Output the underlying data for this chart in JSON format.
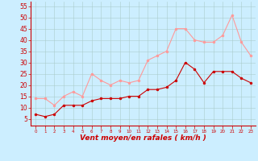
{
  "x": [
    0,
    1,
    2,
    3,
    4,
    5,
    6,
    7,
    8,
    9,
    10,
    11,
    12,
    13,
    14,
    15,
    16,
    17,
    18,
    19,
    20,
    21,
    22,
    23
  ],
  "wind_mean": [
    7,
    6,
    7,
    11,
    11,
    11,
    13,
    14,
    14,
    14,
    15,
    15,
    18,
    18,
    19,
    22,
    30,
    27,
    21,
    26,
    26,
    26,
    23,
    21
  ],
  "wind_gust": [
    14,
    14,
    11,
    15,
    17,
    15,
    25,
    22,
    20,
    22,
    21,
    22,
    31,
    33,
    35,
    45,
    45,
    40,
    39,
    39,
    42,
    51,
    39,
    33
  ],
  "mean_color": "#cc0000",
  "gust_color": "#ff9999",
  "bg_color": "#cceeff",
  "grid_color": "#aacccc",
  "xlabel": "Vent moyen/en rafales ( km/h )",
  "xlabel_color": "#cc0000",
  "yticks": [
    5,
    10,
    15,
    20,
    25,
    30,
    35,
    40,
    45,
    50,
    55
  ],
  "ylim": [
    2,
    57
  ],
  "xlim": [
    -0.5,
    23.5
  ],
  "marker": "o",
  "markersize": 2.0,
  "linewidth": 0.8
}
